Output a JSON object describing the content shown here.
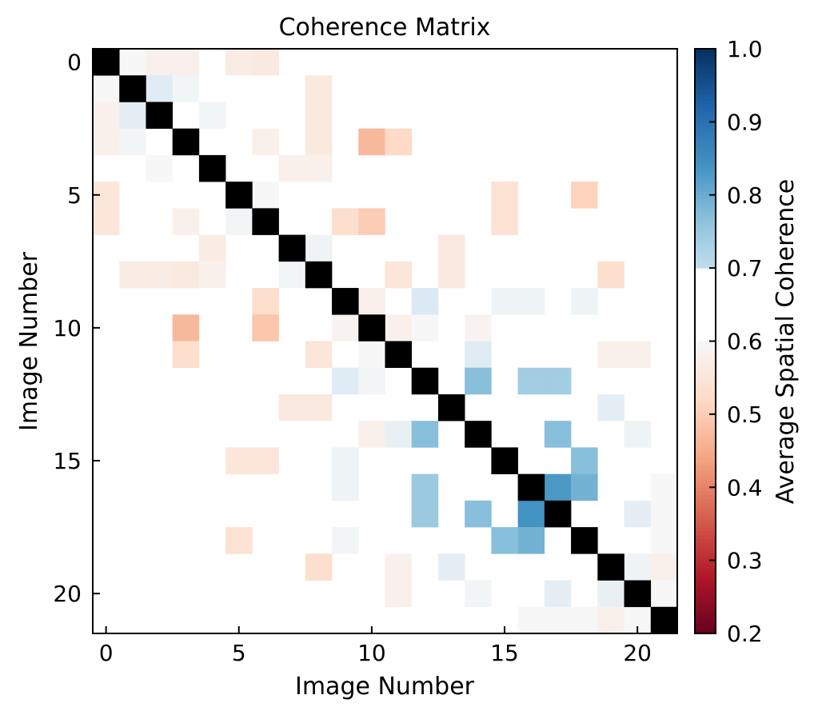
{
  "chart_data": {
    "type": "heatmap",
    "title": "Coherence Matrix",
    "xlabel": "Image Number",
    "ylabel": "Image Number",
    "x_ticks": [
      0,
      5,
      10,
      15,
      20
    ],
    "y_ticks": [
      0,
      5,
      10,
      15,
      20
    ],
    "xlim": [
      -0.5,
      21.5
    ],
    "ylim": [
      21.5,
      -0.5
    ],
    "n": 22,
    "diagonal_color": "#000000",
    "colorbar": {
      "label": "Average Spatial Coherence",
      "min": 0.2,
      "max": 1.0,
      "ticks": [
        0.2,
        0.3,
        0.4,
        0.5,
        0.6,
        0.7,
        0.8,
        0.9,
        1.0
      ],
      "colormap": "RdBu",
      "masked_band": [
        0.6,
        0.7
      ]
    },
    "cells": [
      [
        0,
        1,
        0.6
      ],
      [
        0,
        2,
        0.58
      ],
      [
        0,
        3,
        0.58
      ],
      [
        0,
        5,
        0.57
      ],
      [
        0,
        6,
        0.56
      ],
      [
        1,
        0,
        0.6
      ],
      [
        1,
        2,
        0.65
      ],
      [
        1,
        3,
        0.61
      ],
      [
        1,
        8,
        0.56
      ],
      [
        2,
        0,
        0.58
      ],
      [
        2,
        1,
        0.64
      ],
      [
        2,
        4,
        0.61
      ],
      [
        2,
        8,
        0.56
      ],
      [
        3,
        0,
        0.58
      ],
      [
        3,
        1,
        0.61
      ],
      [
        3,
        6,
        0.58
      ],
      [
        3,
        8,
        0.56
      ],
      [
        3,
        10,
        0.47
      ],
      [
        3,
        11,
        0.52
      ],
      [
        4,
        2,
        0.6
      ],
      [
        4,
        7,
        0.58
      ],
      [
        4,
        8,
        0.58
      ],
      [
        5,
        0,
        0.55
      ],
      [
        5,
        6,
        0.6
      ],
      [
        5,
        15,
        0.54
      ],
      [
        5,
        18,
        0.51
      ],
      [
        6,
        0,
        0.55
      ],
      [
        6,
        3,
        0.58
      ],
      [
        6,
        5,
        0.61
      ],
      [
        6,
        9,
        0.53
      ],
      [
        6,
        10,
        0.5
      ],
      [
        6,
        15,
        0.54
      ],
      [
        7,
        4,
        0.57
      ],
      [
        7,
        8,
        0.62
      ],
      [
        7,
        13,
        0.56
      ],
      [
        8,
        1,
        0.57
      ],
      [
        8,
        2,
        0.57
      ],
      [
        8,
        3,
        0.56
      ],
      [
        8,
        4,
        0.58
      ],
      [
        8,
        7,
        0.61
      ],
      [
        8,
        11,
        0.55
      ],
      [
        8,
        13,
        0.56
      ],
      [
        8,
        19,
        0.53
      ],
      [
        9,
        6,
        0.53
      ],
      [
        9,
        10,
        0.58
      ],
      [
        9,
        12,
        0.66
      ],
      [
        9,
        15,
        0.62
      ],
      [
        9,
        16,
        0.62
      ],
      [
        9,
        18,
        0.62
      ],
      [
        10,
        3,
        0.47
      ],
      [
        10,
        6,
        0.49
      ],
      [
        10,
        9,
        0.59
      ],
      [
        10,
        11,
        0.58
      ],
      [
        10,
        12,
        0.6
      ],
      [
        10,
        14,
        0.59
      ],
      [
        11,
        3,
        0.53
      ],
      [
        11,
        8,
        0.55
      ],
      [
        11,
        10,
        0.6
      ],
      [
        11,
        14,
        0.65
      ],
      [
        11,
        19,
        0.58
      ],
      [
        11,
        20,
        0.58
      ],
      [
        12,
        9,
        0.65
      ],
      [
        12,
        10,
        0.61
      ],
      [
        12,
        14,
        0.77
      ],
      [
        12,
        16,
        0.74
      ],
      [
        12,
        17,
        0.74
      ],
      [
        13,
        7,
        0.56
      ],
      [
        13,
        8,
        0.56
      ],
      [
        13,
        19,
        0.64
      ],
      [
        14,
        10,
        0.58
      ],
      [
        14,
        11,
        0.63
      ],
      [
        14,
        12,
        0.77
      ],
      [
        14,
        17,
        0.77
      ],
      [
        14,
        20,
        0.62
      ],
      [
        15,
        5,
        0.55
      ],
      [
        15,
        6,
        0.55
      ],
      [
        15,
        9,
        0.62
      ],
      [
        15,
        18,
        0.77
      ],
      [
        16,
        9,
        0.62
      ],
      [
        16,
        12,
        0.75
      ],
      [
        16,
        17,
        0.83
      ],
      [
        16,
        18,
        0.79
      ],
      [
        16,
        21,
        0.6
      ],
      [
        17,
        12,
        0.75
      ],
      [
        17,
        14,
        0.77
      ],
      [
        17,
        16,
        0.84
      ],
      [
        17,
        20,
        0.64
      ],
      [
        17,
        21,
        0.6
      ],
      [
        18,
        5,
        0.54
      ],
      [
        18,
        9,
        0.61
      ],
      [
        18,
        15,
        0.77
      ],
      [
        18,
        16,
        0.79
      ],
      [
        18,
        21,
        0.6
      ],
      [
        19,
        8,
        0.53
      ],
      [
        19,
        11,
        0.58
      ],
      [
        19,
        13,
        0.64
      ],
      [
        19,
        20,
        0.62
      ],
      [
        19,
        21,
        0.58
      ],
      [
        20,
        11,
        0.58
      ],
      [
        20,
        14,
        0.61
      ],
      [
        20,
        17,
        0.64
      ],
      [
        20,
        19,
        0.63
      ],
      [
        20,
        21,
        0.6
      ],
      [
        21,
        16,
        0.6
      ],
      [
        21,
        17,
        0.6
      ],
      [
        21,
        18,
        0.6
      ],
      [
        21,
        19,
        0.58
      ],
      [
        21,
        20,
        0.6
      ]
    ]
  }
}
